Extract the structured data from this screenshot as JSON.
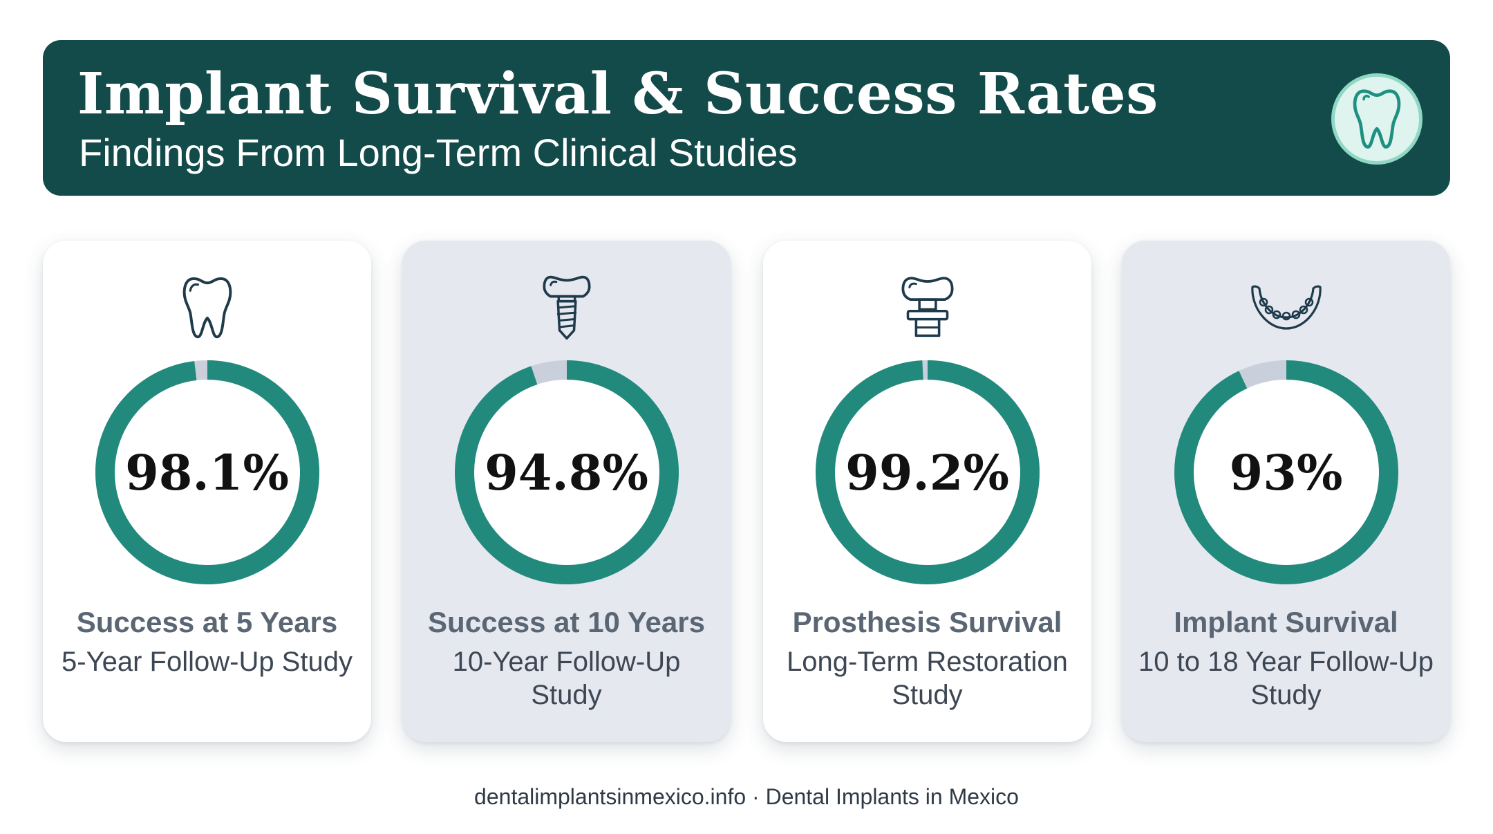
{
  "header": {
    "title": "Implant Survival & Success Rates",
    "subtitle": "Findings From Long-Term Clinical Studies",
    "badge_icon": "tooth-icon"
  },
  "colors": {
    "header_bg": "#134b4a",
    "ring_fill": "#218a7d",
    "ring_remainder": "#c9d0db",
    "card_white": "#ffffff",
    "card_grey": "#e5e8ef"
  },
  "chart_data": [
    {
      "type": "pie",
      "value": 98.1,
      "display": "98.1%",
      "label": "Success at 5 Years",
      "description": "5-Year Follow-Up Study",
      "icon": "tooth-icon"
    },
    {
      "type": "pie",
      "value": 94.8,
      "display": "94.8%",
      "label": "Success at 10 Years",
      "description": "10-Year Follow-Up Study",
      "icon": "dental-implant-icon"
    },
    {
      "type": "pie",
      "value": 99.2,
      "display": "99.2%",
      "label": "Prosthesis Survival",
      "description": "Long-Term Restoration Study",
      "icon": "implant-crown-icon"
    },
    {
      "type": "pie",
      "value": 93,
      "display": "93%",
      "label": "Implant Survival",
      "description": "10 to 18 Year Follow-Up Study",
      "icon": "denture-icon"
    }
  ],
  "footer": {
    "text": "dentalimplantsinmexico.info · Dental Implants in Mexico"
  }
}
